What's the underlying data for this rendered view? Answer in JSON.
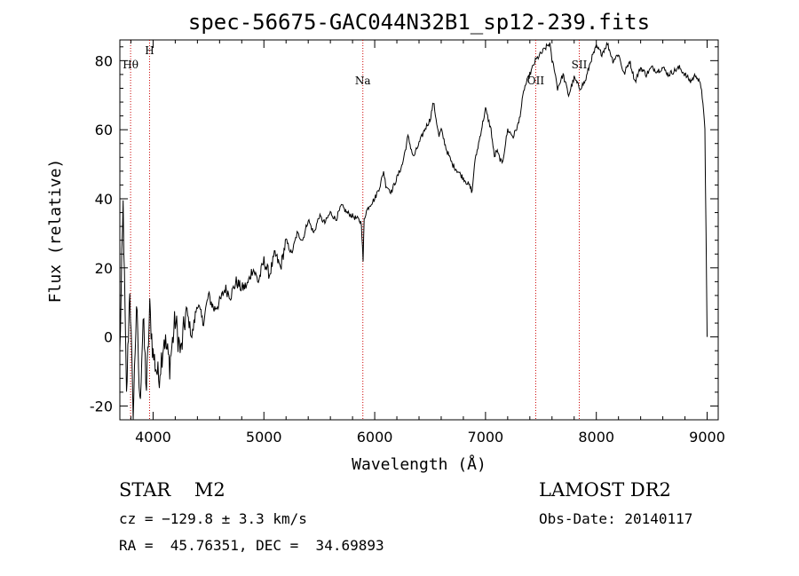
{
  "chart_data": {
    "type": "line",
    "title": "spec-56675-GAC044N32B1_sp12-239.fits",
    "xlabel": "Wavelength (Å)",
    "ylabel": "Flux (relative)",
    "xlim": [
      3700,
      9100
    ],
    "ylim": [
      -24,
      86
    ],
    "xticks": [
      4000,
      5000,
      6000,
      7000,
      8000,
      9000
    ],
    "yticks": [
      -20,
      0,
      20,
      40,
      60,
      80
    ],
    "line_color": "#000000",
    "marker_color": "#cc0000",
    "spectrum": {
      "x": [
        3700,
        3730,
        3760,
        3790,
        3820,
        3850,
        3880,
        3910,
        3940,
        3970,
        4000,
        4050,
        4100,
        4150,
        4200,
        4250,
        4300,
        4350,
        4400,
        4450,
        4500,
        4550,
        4600,
        4650,
        4700,
        4750,
        4800,
        4850,
        4900,
        4950,
        5000,
        5050,
        5100,
        5150,
        5200,
        5250,
        5300,
        5350,
        5400,
        5450,
        5500,
        5550,
        5600,
        5650,
        5700,
        5750,
        5800,
        5850,
        5880,
        5895,
        5905,
        5920,
        5950,
        6000,
        6050,
        6080,
        6100,
        6150,
        6200,
        6250,
        6300,
        6350,
        6400,
        6450,
        6500,
        6530,
        6560,
        6580,
        6600,
        6650,
        6700,
        6750,
        6800,
        6850,
        6880,
        6900,
        6950,
        7000,
        7050,
        7080,
        7100,
        7150,
        7200,
        7250,
        7300,
        7350,
        7400,
        7450,
        7500,
        7550,
        7580,
        7600,
        7620,
        7650,
        7700,
        7750,
        7800,
        7850,
        7900,
        7950,
        8000,
        8050,
        8100,
        8150,
        8200,
        8250,
        8300,
        8350,
        8400,
        8450,
        8500,
        8550,
        8600,
        8650,
        8700,
        8750,
        8800,
        8850,
        8900,
        8950,
        8980,
        8990,
        9000
      ],
      "y": [
        -5,
        38,
        -18,
        15,
        -24,
        10,
        -20,
        5,
        -15,
        8,
        -5,
        -12,
        0,
        -8,
        5,
        -5,
        8,
        0,
        10,
        4,
        12,
        8,
        10,
        14,
        12,
        16,
        14,
        15,
        20,
        16,
        22,
        18,
        24,
        20,
        28,
        24,
        30,
        28,
        34,
        30,
        35,
        33,
        36,
        34,
        38,
        36,
        35,
        34,
        33,
        22,
        34,
        36,
        38,
        40,
        44,
        48,
        44,
        42,
        46,
        50,
        58,
        52,
        56,
        60,
        63,
        68,
        62,
        58,
        60,
        54,
        50,
        48,
        46,
        44,
        42,
        50,
        58,
        66,
        60,
        52,
        54,
        50,
        60,
        58,
        62,
        72,
        76,
        80,
        82,
        84,
        85,
        80,
        78,
        72,
        76,
        70,
        75,
        72,
        74,
        80,
        84,
        82,
        85,
        80,
        82,
        76,
        80,
        74,
        78,
        76,
        78,
        77,
        78,
        76,
        77,
        78,
        76,
        74,
        76,
        72,
        60,
        30,
        0
      ]
    },
    "markers": [
      {
        "x": 3797,
        "label": "Hθ"
      },
      {
        "x": 3968,
        "label": "H"
      },
      {
        "x": 5893,
        "label": "Na"
      },
      {
        "x": 7453,
        "label": "OII"
      },
      {
        "x": 7846,
        "label": "SII"
      }
    ]
  },
  "info": {
    "object": "STAR    M2",
    "survey": "LAMOST DR2",
    "cz": "cz = −129.8 ± 3.3 km/s",
    "obs_date": "Obs-Date: 20140117",
    "coords": "RA =  45.76351, DEC =  34.69893"
  }
}
